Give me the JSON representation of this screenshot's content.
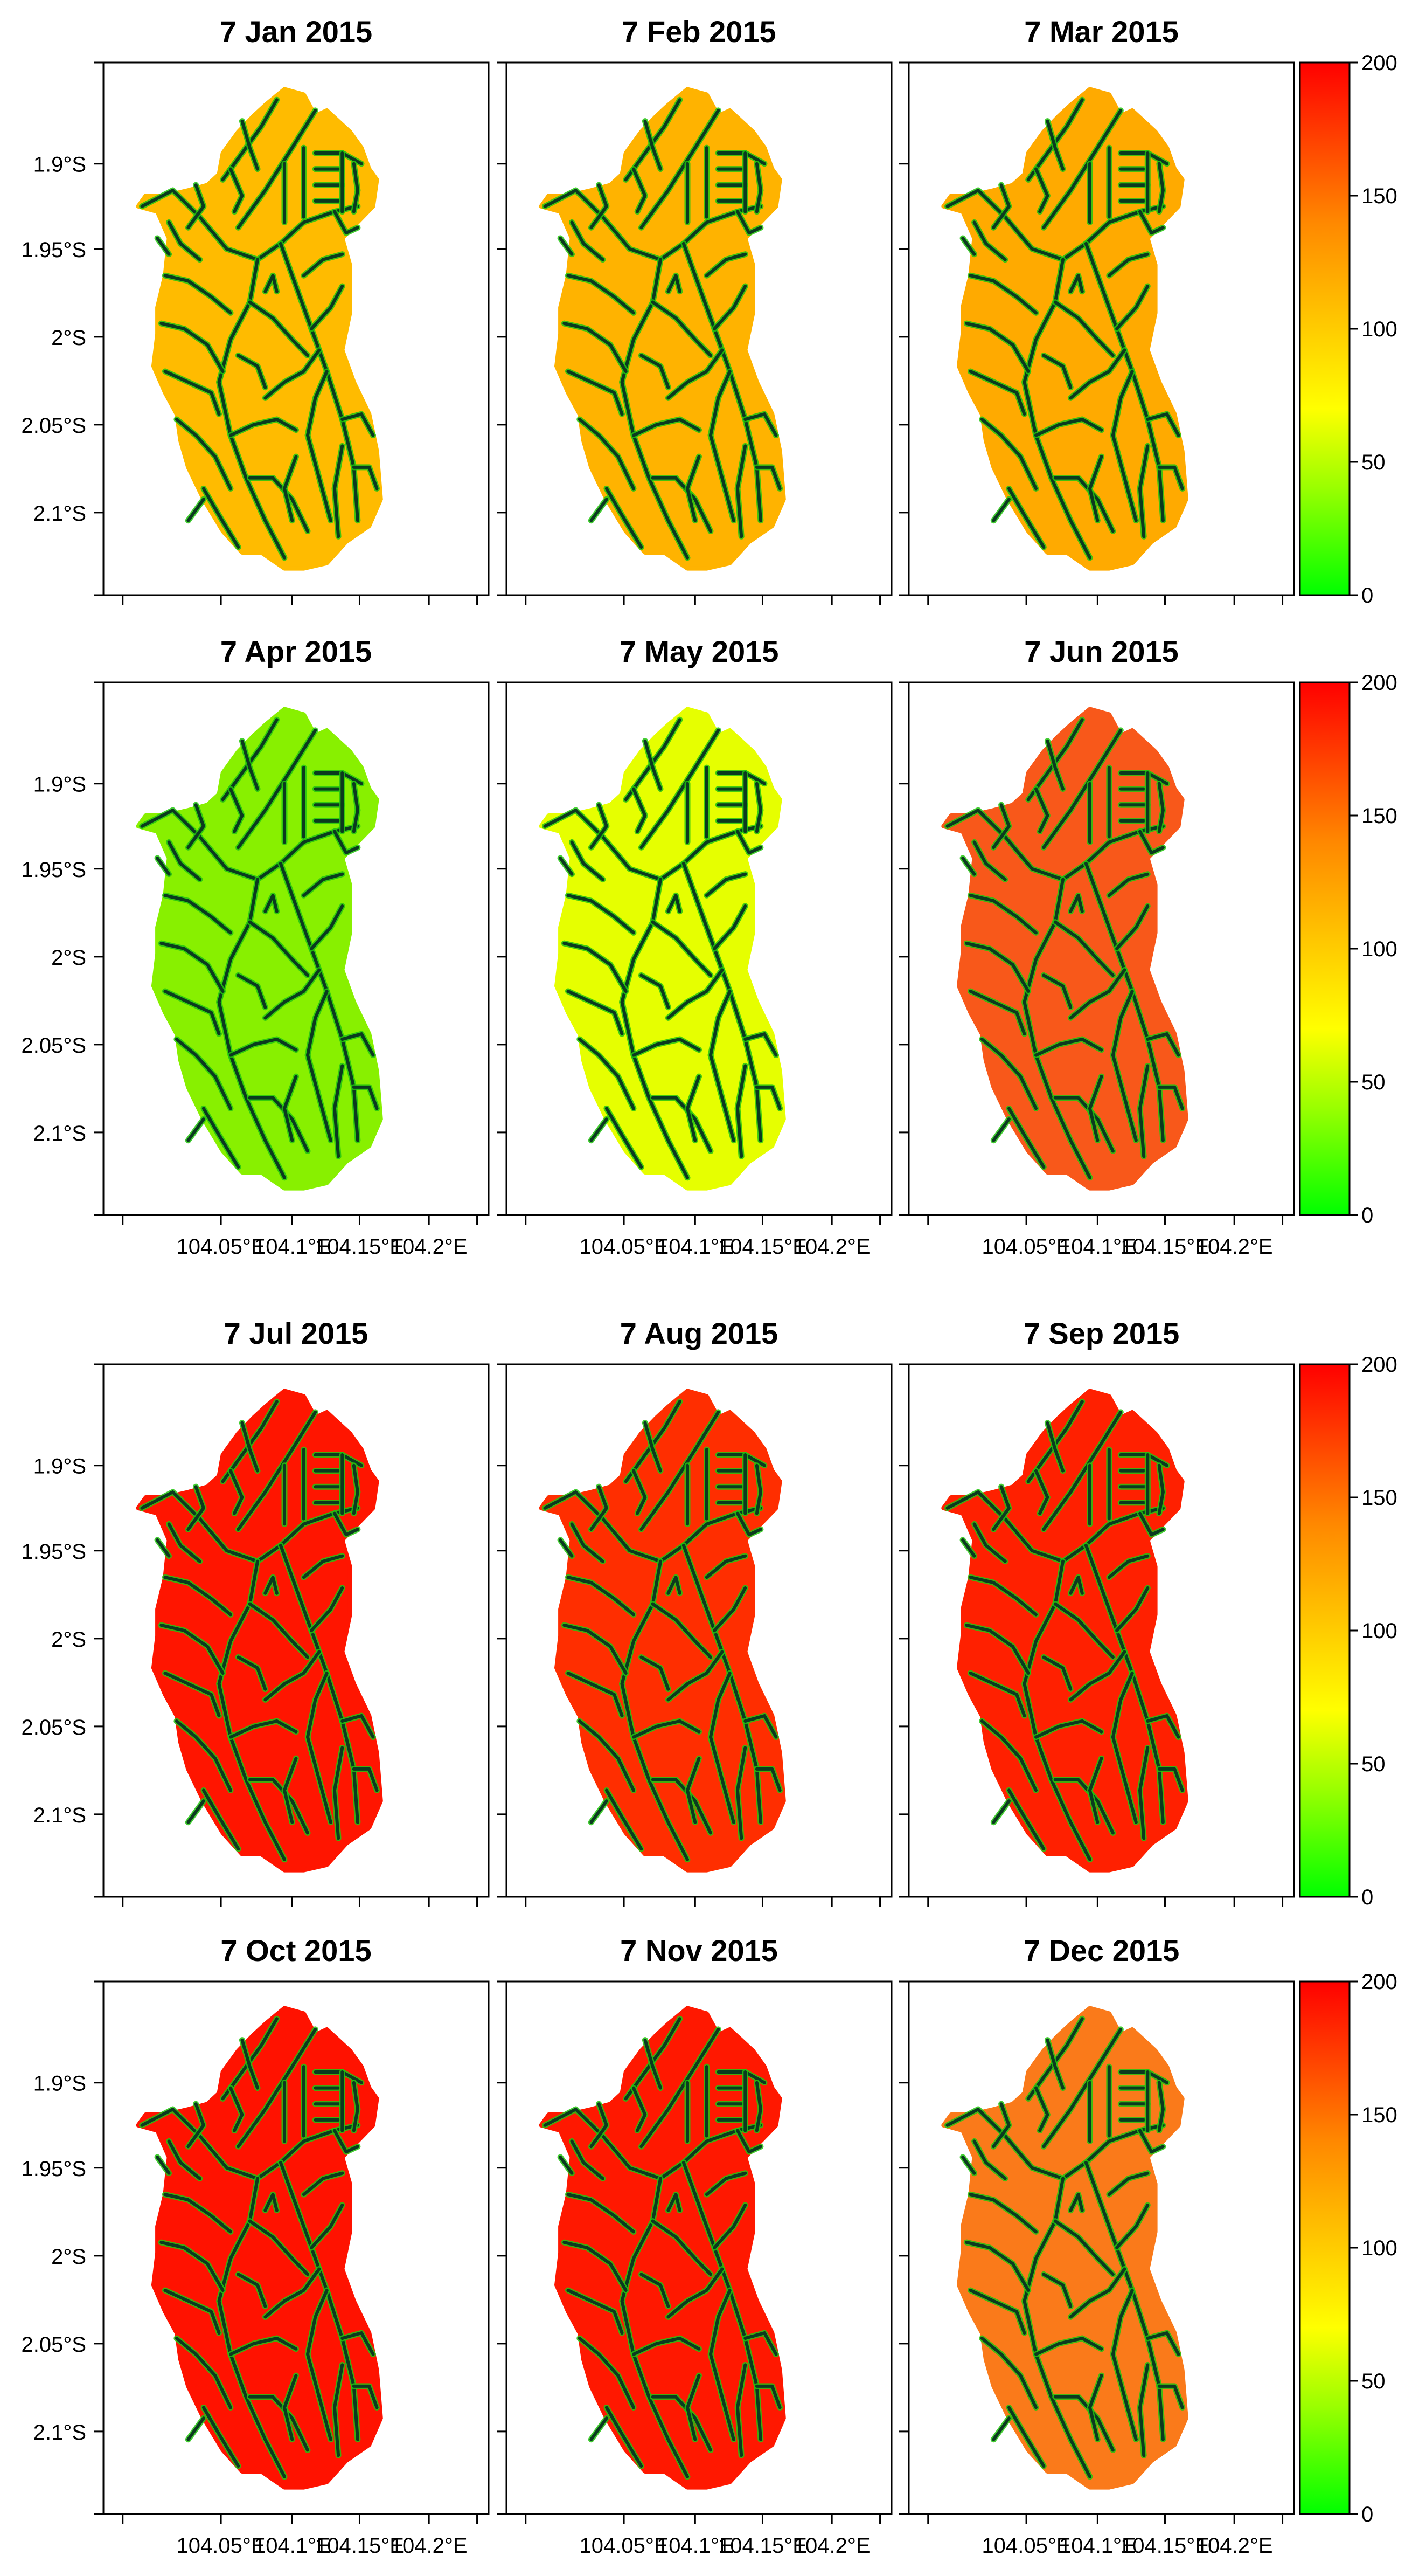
{
  "figure": {
    "type": "raster_map_grid",
    "value_range": [
      0,
      200
    ],
    "colorbar_ticks": [
      "200",
      "150",
      "100",
      "50",
      "0"
    ],
    "colorbar_stops": [
      {
        "value": 0,
        "color": "#00ff00"
      },
      {
        "value": 40,
        "color": "#99ff00"
      },
      {
        "value": 70,
        "color": "#ffff00"
      },
      {
        "value": 100,
        "color": "#ffcc00"
      },
      {
        "value": 140,
        "color": "#ff8800"
      },
      {
        "value": 200,
        "color": "#ff0000"
      }
    ],
    "y_tick_labels": [
      "1.9°S",
      "1.95°S",
      "2°S",
      "2.05°S",
      "2.1°S"
    ],
    "x_tick_labels": [
      "104.05°E",
      "104.1°E",
      "104.15°E",
      "104.2°E"
    ],
    "river_color": "#0b3a1f",
    "river_edge_color": "#22c40f"
  },
  "panels": [
    {
      "title": "7 Jan 2015",
      "fill": "#ffbb00"
    },
    {
      "title": "7 Feb 2015",
      "fill": "#ffb300"
    },
    {
      "title": "7 Mar 2015",
      "fill": "#ffaa00"
    },
    {
      "title": "7 Apr 2015",
      "fill": "#88f000"
    },
    {
      "title": "7 May 2015",
      "fill": "#e6ff00"
    },
    {
      "title": "7 Jun 2015",
      "fill": "#f8581a"
    },
    {
      "title": "7 Jul 2015",
      "fill": "#ff1500"
    },
    {
      "title": "7 Aug 2015",
      "fill": "#ff2e00"
    },
    {
      "title": "7 Sep 2015",
      "fill": "#ff2000"
    },
    {
      "title": "7 Oct 2015",
      "fill": "#ff1200"
    },
    {
      "title": "7 Nov 2015",
      "fill": "#ff1800"
    },
    {
      "title": "7 Dec 2015",
      "fill": "#fa7a1a"
    }
  ]
}
